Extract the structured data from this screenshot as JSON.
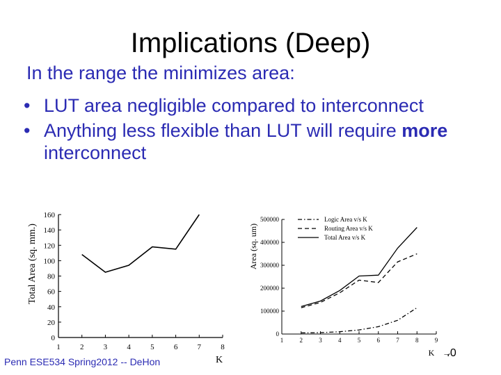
{
  "slide": {
    "title": "Implications (Deep)",
    "intro": "In the range the minimizes area:",
    "bullet1": "LUT area negligible compared to interconnect",
    "bullet2_part1": "Anything less flexible than LUT will require ",
    "bullet2_bold": "more",
    "bullet2_part2": " interconnect",
    "footer": "Penn ESE534 Spring2012 -- DeHon",
    "page_number": "40"
  },
  "chart_data": [
    {
      "type": "line",
      "xlabel": "K",
      "ylabel": "Total Area (sq. mm.)",
      "xlim": [
        1,
        8
      ],
      "ylim": [
        0,
        160
      ],
      "x_ticks": [
        "1",
        "2",
        "3",
        "4",
        "5",
        "6",
        "7",
        "8"
      ],
      "y_ticks": [
        "0",
        "20",
        "40",
        "60",
        "80",
        "100",
        "120",
        "140",
        "160"
      ],
      "series": [
        {
          "x": [
            2,
            3,
            4,
            5,
            6,
            7
          ],
          "values": [
            108,
            85,
            94,
            118,
            115,
            160
          ]
        }
      ]
    },
    {
      "type": "line",
      "xlabel": "K",
      "ylabel": "Area (sq. um)",
      "xlim": [
        1,
        9
      ],
      "ylim": [
        0,
        500000
      ],
      "x_ticks": [
        "1",
        "2",
        "3",
        "4",
        "5",
        "6",
        "7",
        "8",
        "9"
      ],
      "y_ticks": [
        "0",
        "100000",
        "200000",
        "300000",
        "400000",
        "500000"
      ],
      "legend_position": "top-right",
      "series": [
        {
          "name": "Logic Area v/s K",
          "style": "dashdot",
          "x": [
            2,
            3,
            4,
            5,
            6,
            7,
            8
          ],
          "values": [
            5000,
            6000,
            10000,
            18000,
            32000,
            60000,
            115000
          ]
        },
        {
          "name": "Routing Area v/s K",
          "style": "dashed",
          "x": [
            2,
            3,
            4,
            5,
            6,
            7,
            8
          ],
          "values": [
            115000,
            138000,
            180000,
            235000,
            225000,
            315000,
            350000
          ]
        },
        {
          "name": "Total Area v/s K",
          "style": "solid",
          "x": [
            2,
            3,
            4,
            5,
            6,
            7,
            8
          ],
          "values": [
            120000,
            144000,
            190000,
            253000,
            257000,
            375000,
            465000
          ]
        }
      ]
    }
  ]
}
